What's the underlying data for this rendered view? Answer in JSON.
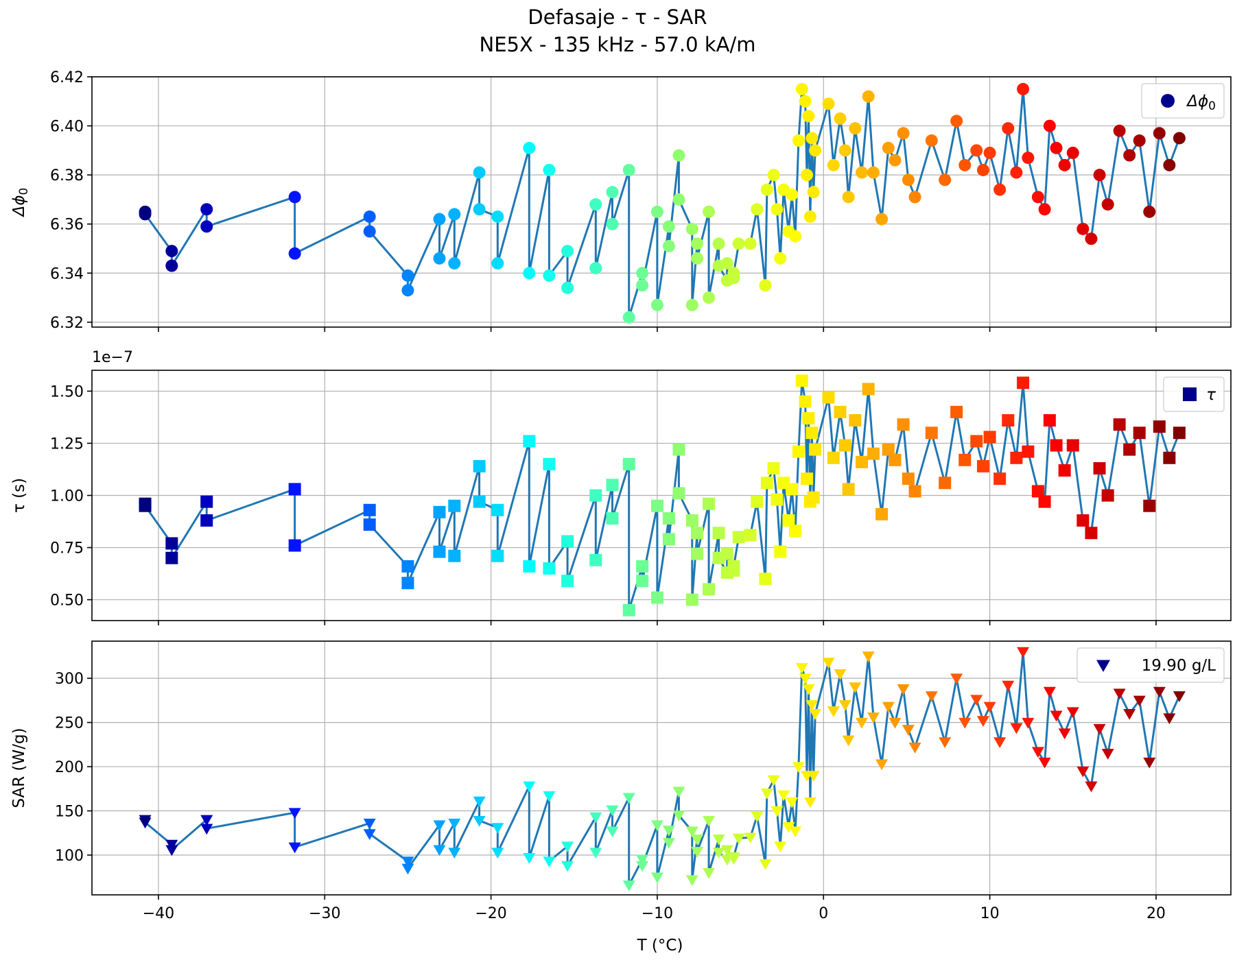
{
  "title_line1": "Defasaje - τ - SAR",
  "title_line2": "NE5X - 135 kHz - 57.0 kA/m",
  "xlabel": "T (°C)",
  "x_tick_labels": [
    "−40",
    "−30",
    "−20",
    "−10",
    "0",
    "10",
    "20"
  ],
  "colormap": "jet",
  "line_color": "#1f77b4",
  "chart_data": [
    {
      "type": "line",
      "marker": "circle",
      "ylabel": "Δϕ0",
      "ylabel_main": "Δϕ",
      "ylabel_sub": "0",
      "legend": "Δϕ0",
      "legend_main": "Δϕ",
      "legend_sub": "0",
      "legend_position": "upper right",
      "grid": true,
      "xlim": [
        -44,
        24.5
      ],
      "ylim": [
        6.318,
        6.42
      ],
      "yticks": [
        6.32,
        6.34,
        6.36,
        6.38,
        6.4,
        6.42
      ],
      "ytick_labels": [
        "6.32",
        "6.34",
        "6.36",
        "6.38",
        "6.40",
        "6.42"
      ],
      "offset_text": "",
      "x": [
        -40.8,
        -40.8,
        -39.2,
        -39.2,
        -37.1,
        -37.1,
        -31.8,
        -31.8,
        -27.3,
        -27.3,
        -25.0,
        -25.0,
        -23.1,
        -23.1,
        -22.2,
        -22.2,
        -20.7,
        -20.7,
        -19.6,
        -19.6,
        -17.7,
        -17.7,
        -16.5,
        -16.5,
        -15.4,
        -15.4,
        -13.7,
        -13.7,
        -12.7,
        -12.7,
        -11.7,
        -11.7,
        -10.9,
        -10.9,
        -10.0,
        -10.0,
        -9.3,
        -9.3,
        -8.7,
        -8.7,
        -7.9,
        -7.9,
        -7.6,
        -7.6,
        -6.9,
        -6.9,
        -6.3,
        -6.3,
        -5.8,
        -5.8,
        -5.4,
        -5.4,
        -5.1,
        -4.4,
        -4.0,
        -3.5,
        -3.4,
        -3.0,
        -2.8,
        -2.6,
        -2.4,
        -2.1,
        -1.9,
        -1.7,
        -1.5,
        -1.3,
        -1.1,
        -1.0,
        -0.9,
        -0.8,
        -0.7,
        -0.6,
        -0.5,
        0.3,
        0.6,
        1.0,
        1.3,
        1.5,
        1.9,
        2.3,
        2.7,
        3.0,
        3.5,
        3.9,
        4.3,
        4.8,
        5.1,
        5.5,
        6.5,
        7.3,
        8.0,
        8.5,
        9.2,
        9.6,
        10.0,
        10.6,
        11.1,
        11.6,
        12.0,
        12.3,
        12.9,
        13.3,
        13.6,
        14.0,
        14.5,
        15.0,
        15.6,
        16.1,
        16.6,
        17.1,
        17.8,
        18.4,
        19.0,
        19.6,
        20.2,
        20.8,
        21.4
      ],
      "values": [
        6.365,
        6.364,
        6.349,
        6.343,
        6.366,
        6.359,
        6.371,
        6.348,
        6.363,
        6.357,
        6.339,
        6.333,
        6.362,
        6.346,
        6.364,
        6.344,
        6.381,
        6.366,
        6.363,
        6.344,
        6.391,
        6.34,
        6.382,
        6.339,
        6.349,
        6.334,
        6.368,
        6.342,
        6.373,
        6.36,
        6.382,
        6.322,
        6.34,
        6.335,
        6.365,
        6.327,
        6.359,
        6.351,
        6.388,
        6.37,
        6.358,
        6.327,
        6.352,
        6.346,
        6.365,
        6.33,
        6.352,
        6.343,
        6.337,
        6.344,
        6.338,
        6.34,
        6.352,
        6.352,
        6.366,
        6.335,
        6.374,
        6.38,
        6.366,
        6.346,
        6.374,
        6.357,
        6.372,
        6.355,
        6.394,
        6.415,
        6.41,
        6.38,
        6.404,
        6.363,
        6.395,
        6.373,
        6.39,
        6.409,
        6.384,
        6.403,
        6.39,
        6.371,
        6.399,
        6.381,
        6.412,
        6.381,
        6.362,
        6.391,
        6.386,
        6.397,
        6.378,
        6.371,
        6.394,
        6.378,
        6.402,
        6.384,
        6.39,
        6.382,
        6.389,
        6.374,
        6.399,
        6.381,
        6.415,
        6.387,
        6.371,
        6.366,
        6.4,
        6.391,
        6.384,
        6.389,
        6.358,
        6.354,
        6.38,
        6.368,
        6.398,
        6.388,
        6.394,
        6.365,
        6.397,
        6.384,
        6.395
      ]
    },
    {
      "type": "line",
      "marker": "square",
      "ylabel": "τ (s)",
      "legend": "τ",
      "legend_position": "upper right",
      "grid": true,
      "xlim": [
        -44,
        24.5
      ],
      "ylim": [
        0.4,
        1.6
      ],
      "yticks": [
        0.5,
        0.75,
        1.0,
        1.25,
        1.5
      ],
      "ytick_labels": [
        "0.50",
        "0.75",
        "1.00",
        "1.25",
        "1.50"
      ],
      "offset_text": "1e−7",
      "x": [
        -40.8,
        -40.8,
        -39.2,
        -39.2,
        -37.1,
        -37.1,
        -31.8,
        -31.8,
        -27.3,
        -27.3,
        -25.0,
        -25.0,
        -23.1,
        -23.1,
        -22.2,
        -22.2,
        -20.7,
        -20.7,
        -19.6,
        -19.6,
        -17.7,
        -17.7,
        -16.5,
        -16.5,
        -15.4,
        -15.4,
        -13.7,
        -13.7,
        -12.7,
        -12.7,
        -11.7,
        -11.7,
        -10.9,
        -10.9,
        -10.0,
        -10.0,
        -9.3,
        -9.3,
        -8.7,
        -8.7,
        -7.9,
        -7.9,
        -7.6,
        -7.6,
        -6.9,
        -6.9,
        -6.3,
        -6.3,
        -5.8,
        -5.8,
        -5.4,
        -5.4,
        -5.1,
        -4.4,
        -4.0,
        -3.5,
        -3.4,
        -3.0,
        -2.8,
        -2.6,
        -2.4,
        -2.1,
        -1.9,
        -1.7,
        -1.5,
        -1.3,
        -1.1,
        -1.0,
        -0.9,
        -0.8,
        -0.7,
        -0.6,
        -0.5,
        0.3,
        0.6,
        1.0,
        1.3,
        1.5,
        1.9,
        2.3,
        2.7,
        3.0,
        3.5,
        3.9,
        4.3,
        4.8,
        5.1,
        5.5,
        6.5,
        7.3,
        8.0,
        8.5,
        9.2,
        9.6,
        10.0,
        10.6,
        11.1,
        11.6,
        12.0,
        12.3,
        12.9,
        13.3,
        13.6,
        14.0,
        14.5,
        15.0,
        15.6,
        16.1,
        16.6,
        17.1,
        17.8,
        18.4,
        19.0,
        19.6,
        20.2,
        20.8,
        21.4
      ],
      "values": [
        0.96,
        0.95,
        0.77,
        0.7,
        0.97,
        0.88,
        1.03,
        0.76,
        0.93,
        0.86,
        0.66,
        0.58,
        0.92,
        0.73,
        0.95,
        0.71,
        1.14,
        0.97,
        0.93,
        0.71,
        1.26,
        0.66,
        1.15,
        0.65,
        0.78,
        0.59,
        1.0,
        0.69,
        1.05,
        0.89,
        1.15,
        0.45,
        0.66,
        0.59,
        0.95,
        0.51,
        0.89,
        0.79,
        1.22,
        1.01,
        0.88,
        0.5,
        0.82,
        0.72,
        0.96,
        0.55,
        0.82,
        0.7,
        0.63,
        0.72,
        0.64,
        0.66,
        0.8,
        0.81,
        0.97,
        0.6,
        1.06,
        1.13,
        0.98,
        0.73,
        1.06,
        0.88,
        1.03,
        0.83,
        1.21,
        1.55,
        1.45,
        1.08,
        1.37,
        0.97,
        1.3,
        0.99,
        1.22,
        1.47,
        1.18,
        1.4,
        1.24,
        1.03,
        1.36,
        1.16,
        1.51,
        1.2,
        0.91,
        1.22,
        1.17,
        1.34,
        1.08,
        1.02,
        1.3,
        1.06,
        1.4,
        1.17,
        1.26,
        1.14,
        1.28,
        1.08,
        1.36,
        1.18,
        1.54,
        1.21,
        1.02,
        0.97,
        1.36,
        1.24,
        1.12,
        1.24,
        0.88,
        0.82,
        1.13,
        1.0,
        1.34,
        1.22,
        1.3,
        0.95,
        1.33,
        1.18,
        1.3
      ]
    },
    {
      "type": "line",
      "marker": "triangle-down",
      "ylabel": "SAR (W/g)",
      "legend": "19.90 g/L",
      "legend_position": "upper right",
      "grid": true,
      "xlim": [
        -44,
        24.5
      ],
      "ylim": [
        55,
        342
      ],
      "yticks": [
        100,
        150,
        200,
        250,
        300
      ],
      "ytick_labels": [
        "100",
        "150",
        "200",
        "250",
        "300"
      ],
      "offset_text": "",
      "x": [
        -40.8,
        -40.8,
        -39.2,
        -39.2,
        -37.1,
        -37.1,
        -31.8,
        -31.8,
        -27.3,
        -27.3,
        -25.0,
        -25.0,
        -23.1,
        -23.1,
        -22.2,
        -22.2,
        -20.7,
        -20.7,
        -19.6,
        -19.6,
        -17.7,
        -17.7,
        -16.5,
        -16.5,
        -15.4,
        -15.4,
        -13.7,
        -13.7,
        -12.7,
        -12.7,
        -11.7,
        -11.7,
        -10.9,
        -10.9,
        -10.0,
        -10.0,
        -9.3,
        -9.3,
        -8.7,
        -8.7,
        -7.9,
        -7.9,
        -7.6,
        -7.6,
        -6.9,
        -6.9,
        -6.3,
        -6.3,
        -5.8,
        -5.8,
        -5.4,
        -5.4,
        -5.1,
        -4.4,
        -4.0,
        -3.5,
        -3.4,
        -3.0,
        -2.8,
        -2.6,
        -2.4,
        -2.1,
        -1.9,
        -1.7,
        -1.5,
        -1.3,
        -1.1,
        -1.0,
        -0.9,
        -0.8,
        -0.7,
        -0.6,
        -0.5,
        0.3,
        0.6,
        1.0,
        1.3,
        1.5,
        1.9,
        2.3,
        2.7,
        3.0,
        3.5,
        3.9,
        4.3,
        4.8,
        5.1,
        5.5,
        6.5,
        7.3,
        8.0,
        8.5,
        9.2,
        9.6,
        10.0,
        10.6,
        11.1,
        11.6,
        12.0,
        12.3,
        12.9,
        13.3,
        13.6,
        14.0,
        14.5,
        15.0,
        15.6,
        16.1,
        16.6,
        17.1,
        17.8,
        18.4,
        19.0,
        19.6,
        20.2,
        20.8,
        21.4
      ],
      "values": [
        140,
        137,
        112,
        106,
        140,
        130,
        148,
        109,
        136,
        124,
        93,
        85,
        134,
        106,
        136,
        103,
        161,
        139,
        131,
        103,
        178,
        97,
        167,
        93,
        110,
        88,
        143,
        103,
        151,
        127,
        165,
        66,
        95,
        88,
        134,
        75,
        128,
        114,
        172,
        145,
        127,
        72,
        118,
        104,
        139,
        80,
        118,
        103,
        95,
        106,
        96,
        98,
        119,
        120,
        144,
        90,
        170,
        185,
        150,
        110,
        168,
        132,
        160,
        127,
        200,
        312,
        300,
        190,
        288,
        160,
        270,
        190,
        260,
        318,
        263,
        305,
        270,
        230,
        290,
        250,
        325,
        256,
        203,
        268,
        250,
        288,
        242,
        222,
        280,
        228,
        300,
        250,
        276,
        252,
        268,
        228,
        292,
        244,
        330,
        250,
        217,
        205,
        285,
        258,
        238,
        262,
        195,
        178,
        243,
        215,
        283,
        260,
        275,
        205,
        285,
        255,
        280
      ]
    }
  ]
}
